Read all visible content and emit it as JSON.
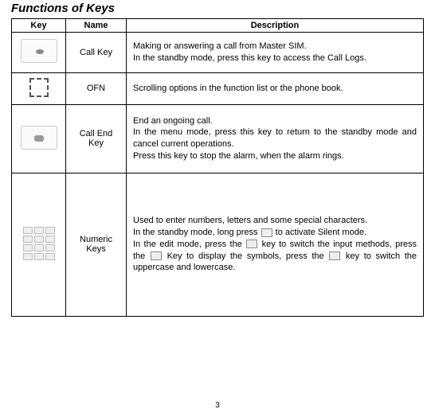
{
  "page": {
    "title": "Functions of Keys",
    "number": "3"
  },
  "table": {
    "headers": {
      "key": "Key",
      "name": "Name",
      "desc": "Description"
    },
    "rows": {
      "call": {
        "name": "Call Key",
        "p1": "Making or answering a call from Master SIM.",
        "p2": "In the standby mode, press this key to access the Call Logs."
      },
      "ofn": {
        "name": "OFN",
        "p1": "Scrolling options in the function list or the phone book."
      },
      "end": {
        "name": "Call End Key",
        "p1": "End an ongoing call.",
        "p2": "In the menu mode, press this key to return to the standby mode and cancel current operations.",
        "p3": "Press this key to stop the alarm, when the alarm rings."
      },
      "num": {
        "name": "Numeric Keys",
        "p1": "Used to enter numbers, letters and some special characters.",
        "p2a": "In the standby mode, long press ",
        "p2b": " to activate Silent mode.",
        "p3a": "In the edit mode, press the ",
        "p3b": " key to switch the input methods, press the ",
        "p3c": " Key to display the symbols, press the ",
        "p3d": " key to switch the uppercase and lowercase."
      }
    }
  }
}
